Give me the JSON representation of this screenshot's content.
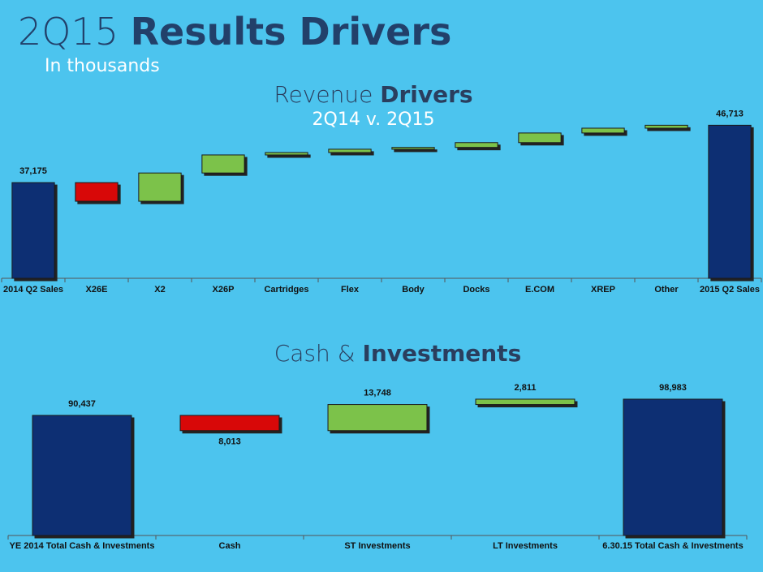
{
  "title_parts": [
    "2Q15",
    "Results Drivers"
  ],
  "subtitle": "In thousands",
  "chart_data": [
    {
      "type": "waterfall",
      "title_parts": [
        "Revenue",
        "Drivers"
      ],
      "subtitle": "2Q14 v. 2Q15",
      "categories": [
        "2014 Q2 Sales",
        "X26E",
        "X2",
        "X26P",
        "Cartridges",
        "Flex",
        "Body",
        "Docks",
        "E.COM",
        "XREP",
        "Other",
        "2015 Q2 Sales"
      ],
      "values": [
        37175,
        -3100,
        4700,
        3000,
        400,
        550,
        300,
        800,
        1600,
        800,
        488,
        46713
      ],
      "value_labels": [
        "37,175",
        null,
        null,
        null,
        null,
        null,
        null,
        null,
        null,
        null,
        null,
        "46,713"
      ],
      "total_color": "#0d2f73",
      "increase_color": "#7cc24a",
      "decrease_color": "#d80808",
      "ylim": [
        21263,
        50000
      ]
    },
    {
      "type": "waterfall",
      "title_parts": [
        "Cash &",
        "Investments"
      ],
      "categories": [
        "YE 2014 Total Cash & Investments",
        "Cash",
        "ST Investments",
        "LT Investments",
        "6.30.15 Total Cash & Investments"
      ],
      "values": [
        90437,
        -8013,
        13748,
        2811,
        98983
      ],
      "value_labels": [
        "90,437",
        "8,013",
        "13,748",
        "2,811",
        "98,983"
      ],
      "total_color": "#0d2f73",
      "increase_color": "#7cc24a",
      "decrease_color": "#d80808",
      "ylim": [
        27240,
        104100
      ]
    }
  ]
}
